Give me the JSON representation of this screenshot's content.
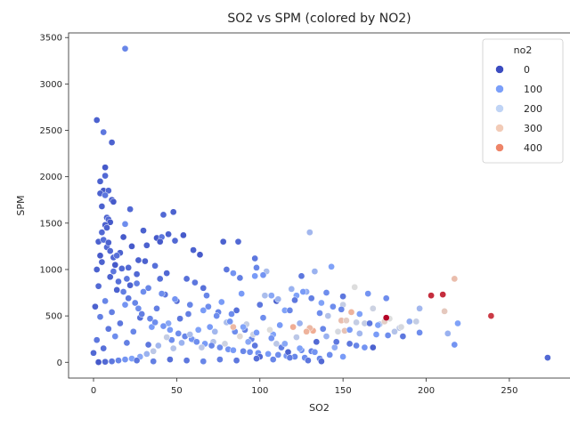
{
  "chart_data": {
    "type": "scatter",
    "title": "SO2 vs SPM (colored by NO2)",
    "xlabel": "SO2",
    "ylabel": "SPM",
    "xlim": [
      -15,
      287
    ],
    "ylim": [
      -170,
      3550
    ],
    "xticks": [
      0,
      50,
      100,
      150,
      200,
      250
    ],
    "yticks": [
      0,
      500,
      1000,
      1500,
      2000,
      2500,
      3000,
      3500
    ],
    "grid": false,
    "legend": {
      "title": "no2",
      "placement": "top-right",
      "entries": [
        {
          "label": "0",
          "value": 0,
          "color": "#3b4cc0"
        },
        {
          "label": "100",
          "value": 100,
          "color": "#7b9ff9"
        },
        {
          "label": "200",
          "value": 200,
          "color": "#c0d4f5"
        },
        {
          "label": "300",
          "value": 300,
          "color": "#f2cbb7"
        },
        {
          "label": "400",
          "value": 400,
          "color": "#ee8468"
        }
      ]
    },
    "color_scale": {
      "min": 0,
      "max": 460,
      "palette": "coolwarm"
    },
    "points": [
      [
        19,
        3380,
        80
      ],
      [
        2,
        2610,
        30
      ],
      [
        6,
        2480,
        60
      ],
      [
        11,
        2370,
        30
      ],
      [
        7,
        2100,
        20
      ],
      [
        7,
        2010,
        40
      ],
      [
        4,
        1950,
        30
      ],
      [
        6,
        1850,
        20
      ],
      [
        9,
        1850,
        40
      ],
      [
        4,
        1820,
        30
      ],
      [
        7,
        1800,
        60
      ],
      [
        11,
        1750,
        30
      ],
      [
        12,
        1730,
        20
      ],
      [
        5,
        1680,
        30
      ],
      [
        8,
        1560,
        30
      ],
      [
        9,
        1540,
        40
      ],
      [
        10,
        1510,
        20
      ],
      [
        7,
        1480,
        30
      ],
      [
        22,
        1650,
        40
      ],
      [
        19,
        1490,
        90
      ],
      [
        18,
        1350,
        20
      ],
      [
        42,
        1590,
        40
      ],
      [
        48,
        1620,
        30
      ],
      [
        30,
        1420,
        30
      ],
      [
        38,
        1340,
        20
      ],
      [
        41,
        1350,
        60
      ],
      [
        45,
        1380,
        30
      ],
      [
        54,
        1370,
        20
      ],
      [
        40,
        1300,
        20
      ],
      [
        49,
        1310,
        40
      ],
      [
        60,
        1210,
        30
      ],
      [
        64,
        1160,
        20
      ],
      [
        78,
        1300,
        30
      ],
      [
        87,
        1300,
        40
      ],
      [
        32,
        1260,
        30
      ],
      [
        23,
        1250,
        20
      ],
      [
        130,
        1400,
        160
      ],
      [
        97,
        1120,
        60
      ],
      [
        98,
        1020,
        80
      ],
      [
        80,
        1000,
        60
      ],
      [
        84,
        960,
        100
      ],
      [
        104,
        980,
        170
      ],
      [
        143,
        1030,
        120
      ],
      [
        133,
        980,
        150
      ],
      [
        125,
        930,
        60
      ],
      [
        140,
        750,
        90
      ],
      [
        150,
        710,
        60
      ],
      [
        165,
        740,
        100
      ],
      [
        176,
        690,
        90
      ],
      [
        119,
        790,
        150
      ],
      [
        122,
        720,
        120
      ],
      [
        128,
        760,
        140
      ],
      [
        110,
        660,
        30
      ],
      [
        97,
        930,
        110
      ],
      [
        88,
        910,
        70
      ],
      [
        102,
        940,
        100
      ],
      [
        151,
        340,
        280
      ],
      [
        155,
        540,
        310
      ],
      [
        157,
        810,
        230
      ],
      [
        149,
        450,
        290
      ],
      [
        152,
        450,
        260
      ],
      [
        168,
        580,
        210
      ],
      [
        172,
        410,
        180
      ],
      [
        175,
        440,
        260
      ],
      [
        163,
        420,
        200
      ],
      [
        178,
        470,
        230
      ],
      [
        181,
        330,
        180
      ],
      [
        184,
        370,
        190
      ],
      [
        190,
        440,
        140
      ],
      [
        194,
        440,
        200
      ],
      [
        196,
        320,
        90
      ],
      [
        196,
        580,
        160
      ],
      [
        203,
        720,
        430
      ],
      [
        210,
        730,
        430
      ],
      [
        211,
        550,
        270
      ],
      [
        217,
        900,
        290
      ],
      [
        213,
        310,
        150
      ],
      [
        217,
        190,
        100
      ],
      [
        219,
        420,
        120
      ],
      [
        239,
        500,
        420
      ],
      [
        273,
        50,
        40
      ],
      [
        176,
        480,
        460
      ],
      [
        185,
        380,
        220
      ],
      [
        136,
        530,
        90
      ],
      [
        138,
        360,
        80
      ],
      [
        141,
        500,
        180
      ],
      [
        145,
        160,
        140
      ],
      [
        150,
        620,
        200
      ],
      [
        160,
        310,
        160
      ],
      [
        166,
        420,
        60
      ],
      [
        168,
        160,
        30
      ],
      [
        132,
        340,
        320
      ],
      [
        130,
        370,
        300
      ],
      [
        154,
        350,
        110
      ],
      [
        160,
        520,
        120
      ],
      [
        158,
        430,
        200
      ],
      [
        147,
        330,
        220
      ],
      [
        170,
        300,
        110
      ],
      [
        115,
        560,
        120
      ],
      [
        118,
        560,
        80
      ],
      [
        124,
        420,
        150
      ],
      [
        122,
        270,
        190
      ],
      [
        108,
        300,
        120
      ],
      [
        102,
        480,
        90
      ],
      [
        95,
        250,
        80
      ],
      [
        100,
        620,
        60
      ],
      [
        89,
        740,
        110
      ],
      [
        86,
        560,
        50
      ],
      [
        85,
        330,
        90
      ],
      [
        92,
        410,
        200
      ],
      [
        93,
        220,
        130
      ],
      [
        80,
        430,
        170
      ],
      [
        75,
        540,
        80
      ],
      [
        70,
        380,
        110
      ],
      [
        72,
        220,
        180
      ],
      [
        69,
        600,
        90
      ],
      [
        66,
        800,
        50
      ],
      [
        63,
        350,
        120
      ],
      [
        60,
        240,
        210
      ],
      [
        57,
        520,
        70
      ],
      [
        52,
        470,
        60
      ],
      [
        50,
        660,
        40
      ],
      [
        47,
        240,
        90
      ],
      [
        45,
        420,
        130
      ],
      [
        43,
        730,
        60
      ],
      [
        40,
        900,
        50
      ],
      [
        38,
        580,
        70
      ],
      [
        35,
        380,
        110
      ],
      [
        33,
        190,
        60
      ],
      [
        31,
        1090,
        30
      ],
      [
        30,
        760,
        90
      ],
      [
        28,
        480,
        50
      ],
      [
        26,
        950,
        40
      ],
      [
        24,
        330,
        80
      ],
      [
        22,
        830,
        30
      ],
      [
        20,
        210,
        70
      ],
      [
        19,
        620,
        100
      ],
      [
        17,
        1010,
        40
      ],
      [
        16,
        420,
        60
      ],
      [
        14,
        780,
        30
      ],
      [
        13,
        280,
        90
      ],
      [
        12,
        1130,
        40
      ],
      [
        11,
        540,
        70
      ],
      [
        10,
        920,
        30
      ],
      [
        9,
        360,
        60
      ],
      [
        8,
        1240,
        40
      ],
      [
        7,
        660,
        80
      ],
      [
        6,
        150,
        50
      ],
      [
        5,
        1080,
        30
      ],
      [
        4,
        490,
        70
      ],
      [
        3,
        820,
        40
      ],
      [
        2,
        240,
        60
      ],
      [
        1,
        600,
        30
      ],
      [
        0,
        100,
        40
      ],
      [
        3,
        1300,
        30
      ],
      [
        5,
        1400,
        40
      ],
      [
        2,
        1000,
        30
      ],
      [
        4,
        1150,
        20
      ],
      [
        6,
        1320,
        50
      ],
      [
        8,
        1450,
        30
      ],
      [
        10,
        1200,
        40
      ],
      [
        12,
        980,
        60
      ],
      [
        15,
        870,
        50
      ],
      [
        18,
        760,
        70
      ],
      [
        21,
        690,
        60
      ],
      [
        25,
        640,
        80
      ],
      [
        27,
        580,
        90
      ],
      [
        29,
        520,
        70
      ],
      [
        34,
        470,
        80
      ],
      [
        37,
        430,
        90
      ],
      [
        42,
        390,
        100
      ],
      [
        46,
        350,
        110
      ],
      [
        51,
        310,
        90
      ],
      [
        55,
        280,
        80
      ],
      [
        59,
        250,
        100
      ],
      [
        62,
        220,
        90
      ],
      [
        67,
        200,
        110
      ],
      [
        71,
        180,
        80
      ],
      [
        76,
        160,
        90
      ],
      [
        81,
        140,
        100
      ],
      [
        84,
        130,
        110
      ],
      [
        90,
        120,
        80
      ],
      [
        94,
        110,
        90
      ],
      [
        99,
        100,
        100
      ],
      [
        105,
        90,
        110
      ],
      [
        111,
        80,
        90
      ],
      [
        116,
        70,
        100
      ],
      [
        121,
        60,
        80
      ],
      [
        127,
        50,
        90
      ],
      [
        131,
        120,
        70
      ],
      [
        136,
        40,
        80
      ],
      [
        112,
        400,
        110
      ],
      [
        106,
        350,
        230
      ],
      [
        88,
        280,
        240
      ],
      [
        79,
        200,
        210
      ],
      [
        73,
        330,
        160
      ],
      [
        65,
        160,
        190
      ],
      [
        58,
        300,
        170
      ],
      [
        53,
        210,
        150
      ],
      [
        48,
        150,
        180
      ],
      [
        44,
        270,
        200
      ],
      [
        39,
        180,
        160
      ],
      [
        36,
        120,
        190
      ],
      [
        32,
        90,
        150
      ],
      [
        28,
        60,
        130
      ],
      [
        23,
        40,
        120
      ],
      [
        19,
        30,
        100
      ],
      [
        15,
        20,
        80
      ],
      [
        11,
        10,
        60
      ],
      [
        7,
        5,
        40
      ],
      [
        3,
        2,
        20
      ],
      [
        84,
        380,
        300
      ],
      [
        120,
        380,
        320
      ],
      [
        128,
        330,
        310
      ],
      [
        96,
        300,
        210
      ],
      [
        110,
        200,
        190
      ],
      [
        140,
        280,
        150
      ],
      [
        146,
        220,
        60
      ],
      [
        134,
        220,
        40
      ],
      [
        125,
        130,
        90
      ],
      [
        117,
        110,
        30
      ],
      [
        113,
        160,
        70
      ],
      [
        100,
        60,
        40
      ],
      [
        97,
        180,
        60
      ],
      [
        91,
        350,
        70
      ],
      [
        83,
        520,
        90
      ],
      [
        77,
        650,
        110
      ],
      [
        68,
        720,
        80
      ],
      [
        61,
        860,
        60
      ],
      [
        56,
        900,
        50
      ],
      [
        44,
        960,
        40
      ],
      [
        37,
        1040,
        50
      ],
      [
        27,
        1100,
        30
      ],
      [
        21,
        1020,
        40
      ],
      [
        16,
        1180,
        30
      ],
      [
        13,
        1050,
        20
      ],
      [
        9,
        1290,
        30
      ],
      [
        14,
        1150,
        50
      ],
      [
        20,
        900,
        60
      ],
      [
        26,
        850,
        70
      ],
      [
        33,
        800,
        80
      ],
      [
        41,
        740,
        90
      ],
      [
        49,
        680,
        100
      ],
      [
        58,
        620,
        80
      ],
      [
        66,
        560,
        110
      ],
      [
        74,
        500,
        90
      ],
      [
        82,
        440,
        100
      ],
      [
        90,
        380,
        120
      ],
      [
        98,
        320,
        110
      ],
      [
        107,
        260,
        100
      ],
      [
        115,
        200,
        130
      ],
      [
        124,
        150,
        120
      ],
      [
        133,
        110,
        100
      ],
      [
        142,
        80,
        90
      ],
      [
        150,
        60,
        110
      ],
      [
        158,
        180,
        80
      ],
      [
        163,
        160,
        100
      ],
      [
        171,
        400,
        120
      ],
      [
        177,
        290,
        90
      ],
      [
        186,
        280,
        60
      ],
      [
        103,
        720,
        170
      ],
      [
        107,
        720,
        130
      ],
      [
        111,
        680,
        150
      ],
      [
        121,
        670,
        60
      ],
      [
        126,
        760,
        110
      ],
      [
        131,
        690,
        70
      ],
      [
        137,
        640,
        120
      ],
      [
        144,
        600,
        90
      ],
      [
        149,
        570,
        80
      ],
      [
        154,
        200,
        60
      ],
      [
        137,
        10,
        40
      ],
      [
        129,
        20,
        60
      ],
      [
        118,
        50,
        70
      ],
      [
        108,
        30,
        80
      ],
      [
        98,
        40,
        50
      ],
      [
        86,
        20,
        60
      ],
      [
        76,
        30,
        70
      ],
      [
        66,
        10,
        80
      ],
      [
        56,
        20,
        60
      ],
      [
        46,
        30,
        50
      ],
      [
        36,
        10,
        70
      ],
      [
        26,
        20,
        60
      ]
    ]
  }
}
